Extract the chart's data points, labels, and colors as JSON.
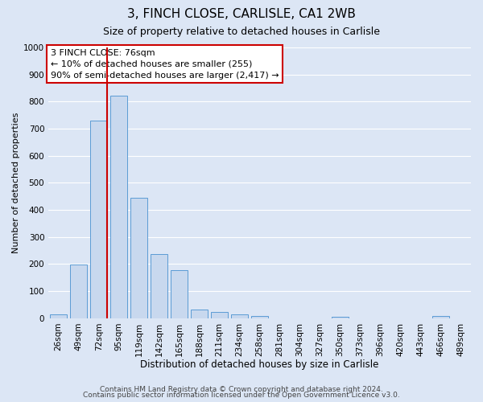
{
  "title": "3, FINCH CLOSE, CARLISLE, CA1 2WB",
  "subtitle": "Size of property relative to detached houses in Carlisle",
  "xlabel": "Distribution of detached houses by size in Carlisle",
  "ylabel": "Number of detached properties",
  "bar_color": "#c8d8ee",
  "bar_edge_color": "#5b9bd5",
  "background_color": "#dce6f5",
  "grid_color": "#ffffff",
  "categories": [
    "26sqm",
    "49sqm",
    "72sqm",
    "95sqm",
    "119sqm",
    "142sqm",
    "165sqm",
    "188sqm",
    "211sqm",
    "234sqm",
    "258sqm",
    "281sqm",
    "304sqm",
    "327sqm",
    "350sqm",
    "373sqm",
    "396sqm",
    "420sqm",
    "443sqm",
    "466sqm",
    "489sqm"
  ],
  "values": [
    13,
    197,
    730,
    822,
    445,
    237,
    178,
    32,
    22,
    15,
    9,
    0,
    0,
    0,
    6,
    0,
    0,
    0,
    0,
    8,
    0
  ],
  "ylim": [
    0,
    1000
  ],
  "yticks": [
    0,
    100,
    200,
    300,
    400,
    500,
    600,
    700,
    800,
    900,
    1000
  ],
  "vline_index": 2,
  "vline_color": "#cc0000",
  "annotation_box_text": "3 FINCH CLOSE: 76sqm\n← 10% of detached houses are smaller (255)\n90% of semi-detached houses are larger (2,417) →",
  "annotation_box_color": "#cc0000",
  "footer_line1": "Contains HM Land Registry data © Crown copyright and database right 2024.",
  "footer_line2": "Contains public sector information licensed under the Open Government Licence v3.0.",
  "title_fontsize": 11,
  "subtitle_fontsize": 9,
  "xlabel_fontsize": 8.5,
  "ylabel_fontsize": 8,
  "tick_fontsize": 7.5,
  "annotation_fontsize": 8,
  "footer_fontsize": 6.5
}
